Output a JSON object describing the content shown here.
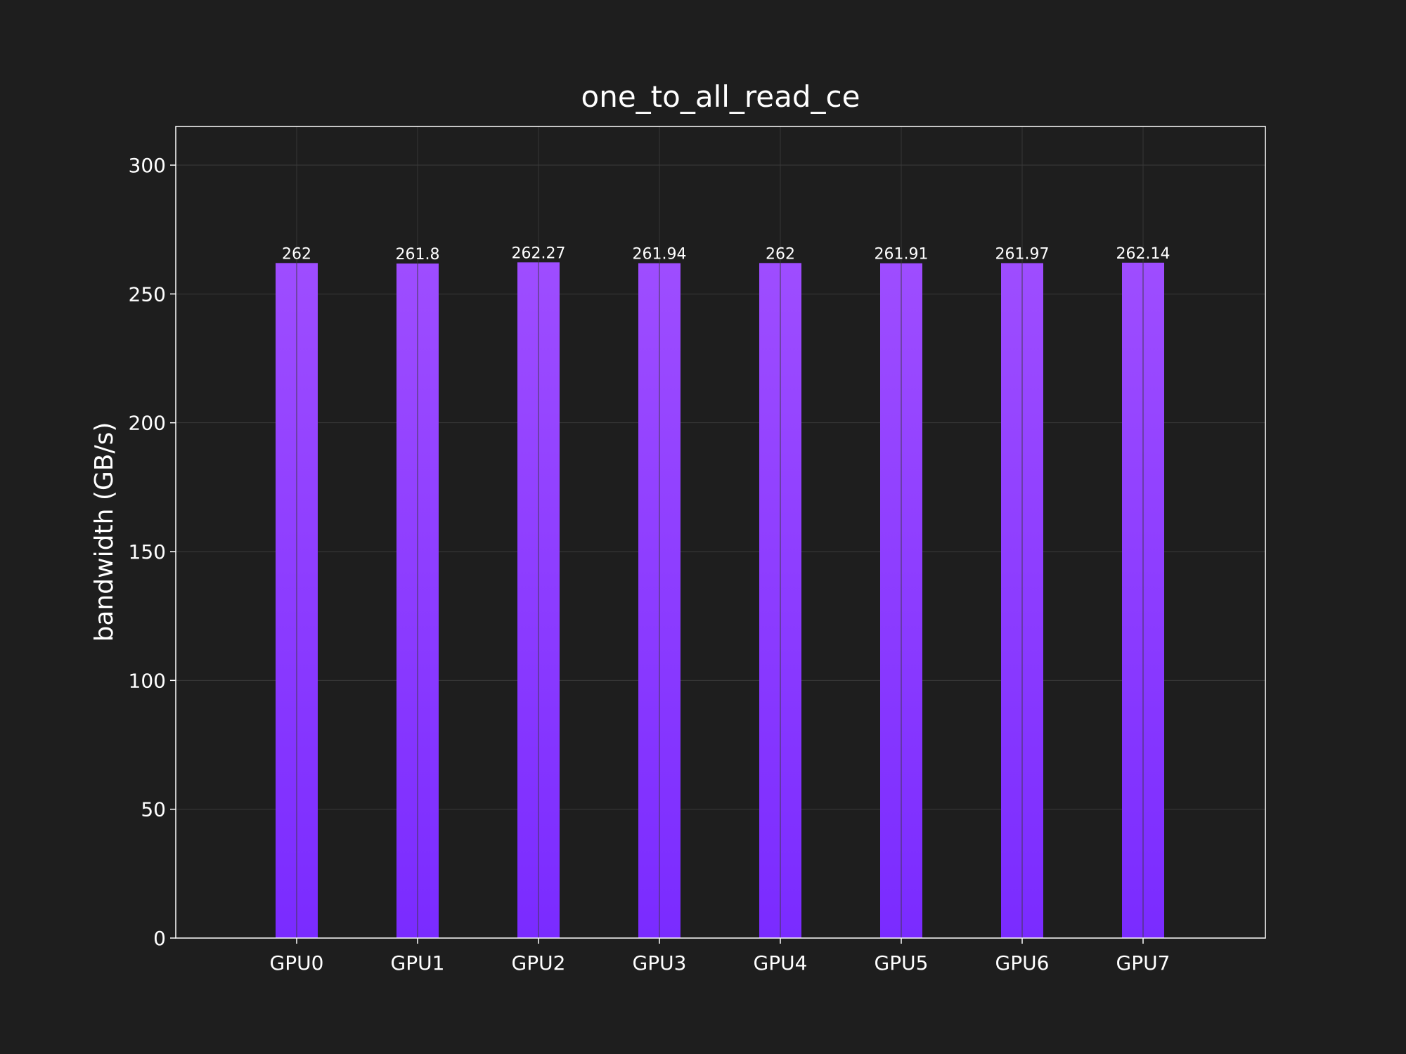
{
  "chart_data": {
    "type": "bar",
    "title": "one_to_all_read_ce",
    "xlabel": "",
    "ylabel": "bandwidth (GB/s)",
    "categories": [
      "GPU0",
      "GPU1",
      "GPU2",
      "GPU3",
      "GPU4",
      "GPU5",
      "GPU6",
      "GPU7"
    ],
    "values": [
      262,
      261.8,
      262.27,
      261.94,
      262,
      261.91,
      261.97,
      262.14
    ],
    "value_labels": [
      "262",
      "261.8",
      "262.27",
      "261.94",
      "262",
      "261.91",
      "261.97",
      "262.14"
    ],
    "ylim": [
      0,
      315
    ],
    "yticks": [
      0,
      50,
      100,
      150,
      200,
      250,
      300
    ],
    "grid": true,
    "legend": "none"
  },
  "colors": {
    "background": "#1e1e1e",
    "axes_edge": "#ffffff",
    "grid": "#3a3a3a",
    "bar_top": "#9e4dff",
    "bar_bottom": "#7a2bff",
    "text": "#ffffff"
  }
}
